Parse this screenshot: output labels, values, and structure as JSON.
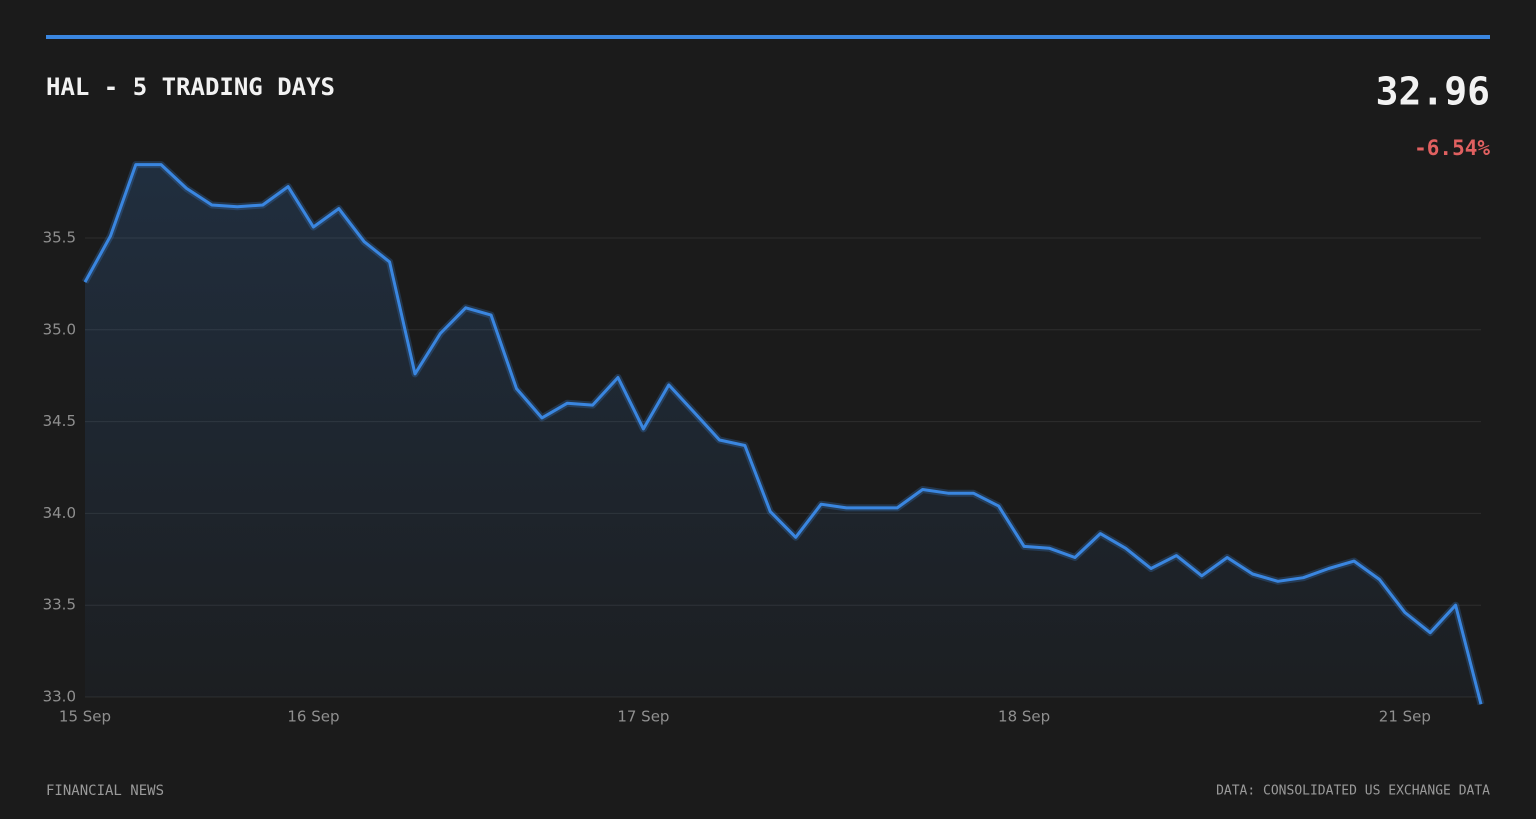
{
  "header": {
    "title": "HAL - 5 TRADING DAYS",
    "price": "32.96",
    "change": "-6.54%"
  },
  "footer": {
    "left": "FINANCIAL NEWS",
    "right": "DATA: CONSOLIDATED US EXCHANGE DATA"
  },
  "chart_data": {
    "type": "line",
    "color": "#3a86e0",
    "grid": true,
    "categories": [
      "15 Sep",
      null,
      null,
      null,
      null,
      null,
      null,
      null,
      null,
      "16 Sep",
      null,
      null,
      null,
      null,
      null,
      null,
      null,
      null,
      null,
      null,
      null,
      null,
      "17 Sep",
      null,
      null,
      null,
      null,
      null,
      null,
      null,
      null,
      null,
      null,
      null,
      null,
      null,
      null,
      "18 Sep",
      null,
      null,
      null,
      null,
      null,
      null,
      null,
      null,
      null,
      null,
      null,
      null,
      null,
      null,
      "21 Sep",
      null,
      null,
      null
    ],
    "values": [
      35.26,
      35.51,
      35.9,
      35.9,
      35.77,
      35.68,
      35.67,
      35.68,
      35.78,
      35.56,
      35.66,
      35.48,
      35.37,
      34.76,
      34.98,
      35.12,
      35.08,
      34.68,
      34.52,
      34.6,
      34.59,
      34.74,
      34.46,
      34.7,
      34.55,
      34.4,
      34.37,
      34.01,
      33.87,
      34.05,
      34.03,
      34.03,
      34.03,
      34.13,
      34.11,
      34.11,
      34.04,
      33.82,
      33.81,
      33.76,
      33.89,
      33.81,
      33.7,
      33.77,
      33.66,
      33.76,
      33.67,
      33.63,
      33.65,
      33.7,
      33.74,
      33.64,
      33.46,
      33.35,
      33.5,
      32.96
    ],
    "ylim": [
      33.0,
      36.0
    ],
    "yticks": [
      {
        "value": 33.0,
        "label": "33.0"
      },
      33.5,
      {
        "value": 34.0,
        "label": "34.0"
      },
      34.5,
      {
        "value": 35.0,
        "label": "35.0"
      },
      35.5
    ]
  }
}
